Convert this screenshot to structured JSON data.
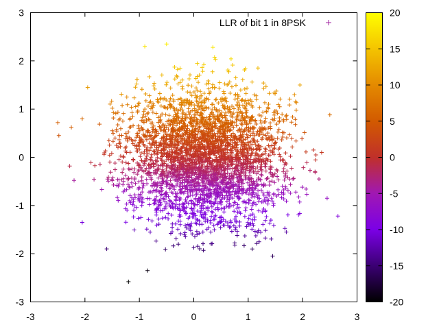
{
  "chart_data": {
    "type": "scatter",
    "title": "",
    "xlabel": "",
    "ylabel": "",
    "xlim": [
      -3,
      3
    ],
    "ylim": [
      -3,
      3
    ],
    "x_ticks": [
      "-3",
      "-2",
      "-1",
      "0",
      "1",
      "2",
      "3"
    ],
    "y_ticks": [
      "-3",
      "-2",
      "-1",
      "0",
      "1",
      "2",
      "3"
    ],
    "legend": {
      "label": "LLR of bit 1 in 8PSK",
      "marker": "+",
      "marker_color": "#a020a0",
      "position": "top-right"
    },
    "marker": "+",
    "colorbar": {
      "range": [
        -20,
        20
      ],
      "ticks": [
        "20",
        "15",
        "10",
        "5",
        "0",
        "-5",
        "-10",
        "-15",
        "-20"
      ],
      "palette": [
        "#000000",
        "#3b0073",
        "#7b00e6",
        "#a018b3",
        "#c0302a",
        "#d25a00",
        "#e48a00",
        "#f4c400",
        "#ffff00"
      ]
    },
    "series": [
      {
        "distribution": "gaussian cloud",
        "center": [
          0.2,
          0.0
        ],
        "spread": 0.72,
        "count": 3500,
        "color_value": "LLR ≈ 8·y",
        "outliers": [
          {
            "x": -2.5,
            "y": 0.72
          },
          {
            "x": -2.48,
            "y": 0.45
          },
          {
            "x": -2.25,
            "y": 0.62
          },
          {
            "x": -2.28,
            "y": -0.18
          },
          {
            "x": -2.2,
            "y": -0.48
          },
          {
            "x": -2.05,
            "y": 0.8
          },
          {
            "x": -1.2,
            "y": -2.58
          },
          {
            "x": -0.85,
            "y": -2.35
          },
          {
            "x": -0.5,
            "y": 2.35
          },
          {
            "x": -0.9,
            "y": 2.3
          },
          {
            "x": 0.35,
            "y": 2.28
          },
          {
            "x": 1.45,
            "y": -2.05
          },
          {
            "x": 2.35,
            "y": 0.1
          },
          {
            "x": 2.5,
            "y": 0.88
          },
          {
            "x": 2.65,
            "y": -1.22
          },
          {
            "x": 2.45,
            "y": -0.85
          },
          {
            "x": 2.3,
            "y": -0.45
          },
          {
            "x": 2.2,
            "y": 0.15
          },
          {
            "x": -2.05,
            "y": -1.35
          },
          {
            "x": 1.95,
            "y": 1.5
          },
          {
            "x": -1.6,
            "y": -1.9
          },
          {
            "x": 1.7,
            "y": -1.55
          },
          {
            "x": -1.95,
            "y": 1.45
          },
          {
            "x": 1.85,
            "y": 1.3
          }
        ]
      }
    ]
  }
}
